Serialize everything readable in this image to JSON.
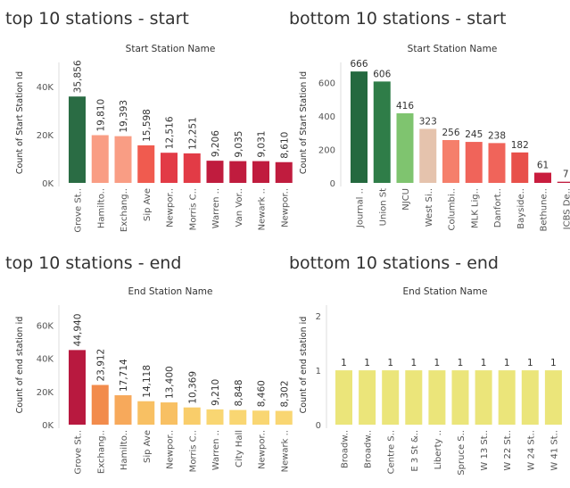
{
  "chart_data": [
    {
      "type": "bar",
      "title": "top 10 stations - start",
      "subtitle": "Start Station Name",
      "ylabel": "Count of Start Station Id",
      "categories": [
        "Grove St..",
        "Hamilto..",
        "Exchang..",
        "Sip Ave",
        "Newpor..",
        "Morris C..",
        "Warren ..",
        "Van Vor..",
        "Newark ..",
        "Newpor.."
      ],
      "values": [
        35856,
        19810,
        19393,
        15598,
        12516,
        12251,
        9206,
        9035,
        9031,
        8610
      ],
      "value_labels": [
        "35,856",
        "19,810",
        "19,393",
        "15,598",
        "12,516",
        "12,251",
        "9,206",
        "9,035",
        "9,031",
        "8,610"
      ],
      "colors": [
        "#2a6c44",
        "#f99d84",
        "#f99d84",
        "#f05b4f",
        "#e23b46",
        "#e23b46",
        "#c01c3e",
        "#c01c3e",
        "#c01c3e",
        "#c01c3e"
      ],
      "ylim": [
        0,
        50000
      ],
      "yticks": [
        0,
        20000,
        40000
      ],
      "ytick_labels": [
        "0K",
        "20K",
        "40K"
      ]
    },
    {
      "type": "bar",
      "title": "bottom 10 stations - start",
      "subtitle": "Start Station Name",
      "ylabel": "Count of Start Station Id",
      "categories": [
        "Journal ..",
        "Union St",
        "NJCU",
        "West Si..",
        "Columbi..",
        "MLK Lig..",
        "Danfort..",
        "Bayside..",
        "Bethune..",
        "JCBS De.."
      ],
      "values": [
        666,
        606,
        416,
        323,
        256,
        245,
        238,
        182,
        61,
        7
      ],
      "value_labels": [
        "666",
        "606",
        "416",
        "323",
        "256",
        "245",
        "238",
        "182",
        "61",
        "7"
      ],
      "colors": [
        "#24693f",
        "#2f7d48",
        "#7fc46f",
        "#e5c3ad",
        "#f57f6b",
        "#f0645a",
        "#f0645a",
        "#e8504a",
        "#c91d3e",
        "#c01c3e"
      ],
      "ylim": [
        0,
        720
      ],
      "yticks": [
        0,
        200,
        400,
        600
      ],
      "ytick_labels": [
        "0",
        "200",
        "400",
        "600"
      ]
    },
    {
      "type": "bar",
      "title": "top 10 stations - end",
      "subtitle": "End Station Name",
      "ylabel": "Count of end station id",
      "categories": [
        "Grove St..",
        "Exchang..",
        "Hamilto..",
        "Sip Ave",
        "Newpor..",
        "Morris C..",
        "Warren ..",
        "City Hall",
        "Newpor..",
        "Newark .."
      ],
      "values": [
        44940,
        23912,
        17714,
        14118,
        13400,
        10369,
        9210,
        8848,
        8460,
        8302
      ],
      "value_labels": [
        "44,940",
        "23,912",
        "17,714",
        "14,118",
        "13,400",
        "10,369",
        "9,210",
        "8,848",
        "8,460",
        "8,302"
      ],
      "colors": [
        "#b8193f",
        "#f28b4c",
        "#f7a95b",
        "#f8c063",
        "#f8c063",
        "#f9cd6a",
        "#f9d672",
        "#f9d672",
        "#f9d672",
        "#f9d672"
      ],
      "ylim": [
        0,
        72000
      ],
      "yticks": [
        0,
        20000,
        40000,
        60000
      ],
      "ytick_labels": [
        "0K",
        "20K",
        "40K",
        "60K"
      ]
    },
    {
      "type": "bar",
      "title": "bottom 10 stations - end",
      "subtitle": "End Station Name",
      "ylabel": "Count of end station id",
      "categories": [
        "Broadw..",
        "Broadw..",
        "Centre S..",
        "E 3 St &..",
        "Liberty ..",
        "Spruce S..",
        "W 13 St..",
        "W 22 St..",
        "W 24 St..",
        "W 41 St.."
      ],
      "values": [
        1,
        1,
        1,
        1,
        1,
        1,
        1,
        1,
        1,
        1
      ],
      "value_labels": [
        "1",
        "1",
        "1",
        "1",
        "1",
        "1",
        "1",
        "1",
        "1",
        "1"
      ],
      "colors": [
        "#ebe57a",
        "#ebe57a",
        "#ebe57a",
        "#ebe57a",
        "#ebe57a",
        "#ebe57a",
        "#ebe57a",
        "#ebe57a",
        "#ebe57a",
        "#ebe57a"
      ],
      "ylim": [
        0,
        2.2
      ],
      "yticks": [
        0,
        1,
        2
      ],
      "ytick_labels": [
        "0",
        "1",
        "2"
      ]
    }
  ]
}
